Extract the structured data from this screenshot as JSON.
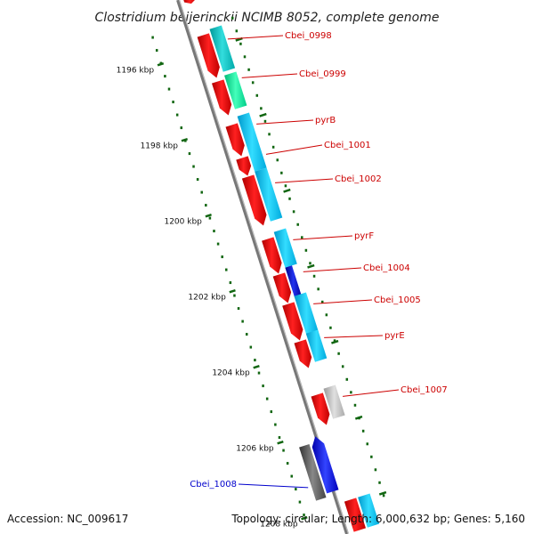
{
  "title": "Clostridium beijerinckii NCIMB 8052, complete genome",
  "accession": "Accession: NC_009617",
  "topology": "Topology: circular; Length: 6,000,632 bp; Genes: 5,160",
  "ticks": [
    {
      "label": "1196 kbp"
    },
    {
      "label": "1198 kbp"
    },
    {
      "label": "1200 kbp"
    },
    {
      "label": "1202 kbp"
    },
    {
      "label": "1204 kbp"
    },
    {
      "label": "1206 kbp"
    },
    {
      "label": "1208 kbp"
    }
  ],
  "genes": [
    {
      "label": "Cbei_0998",
      "color": "#cc0000"
    },
    {
      "label": "Cbei_0999",
      "color": "#cc0000"
    },
    {
      "label": "pyrB",
      "color": "#cc0000"
    },
    {
      "label": "Cbei_1001",
      "color": "#cc0000"
    },
    {
      "label": "Cbei_1002",
      "color": "#cc0000"
    },
    {
      "label": "pyrF",
      "color": "#cc0000"
    },
    {
      "label": "Cbei_1004",
      "color": "#cc0000"
    },
    {
      "label": "Cbei_1005",
      "color": "#cc0000"
    },
    {
      "label": "pyrE",
      "color": "#cc0000"
    },
    {
      "label": "Cbei_1007",
      "color": "#cc0000"
    },
    {
      "label": "Cbei_1008",
      "color": "#0000cc"
    }
  ],
  "colors": {
    "forward_cds": "#ee0000",
    "reverse_cds": "#0000dd",
    "cog_cyan": "#00bbee",
    "cog_teal": "#00bbbb",
    "cog_green": "#00ee99",
    "cog_navy": "#0000aa",
    "cog_gray": "#bbbbbb",
    "cog_dark_gray": "#555555",
    "backbone": "#888888",
    "tick_green": "#116611"
  }
}
